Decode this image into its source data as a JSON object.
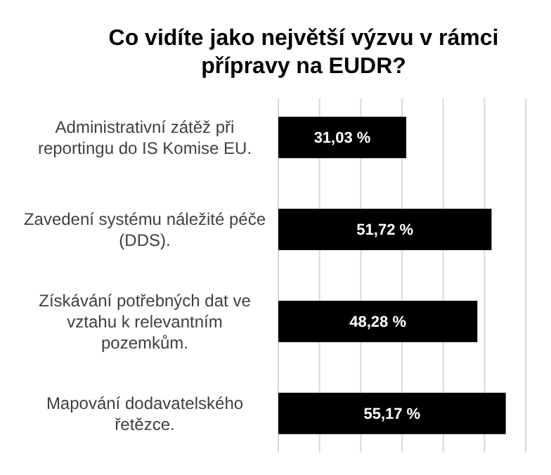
{
  "chart_data": {
    "type": "bar",
    "orientation": "horizontal",
    "title": "Co vidíte jako největší výzvu v rámci přípravy na EUDR?",
    "categories": [
      "Administrativní zátěž při reportingu do IS Komise EU.",
      "Zavedení systému náležité péče (DDS).",
      "Získávání potřebných dat ve vztahu k relevantním pozemkům.",
      "Mapování dodavatelského řetězce."
    ],
    "values": [
      31.03,
      51.72,
      48.28,
      55.17
    ],
    "value_labels": [
      "31,03 %",
      "51,72 %",
      "48,28 %",
      "55,17 %"
    ],
    "color": "#000000",
    "xlim": [
      0,
      60
    ],
    "xticks": [
      {
        "value": 0,
        "label": null
      },
      {
        "value": 10,
        "label": null
      },
      {
        "value": 20,
        "label": null
      },
      {
        "value": 30,
        "label": null
      },
      {
        "value": 40,
        "label": null
      },
      {
        "value": 50,
        "label": null
      },
      {
        "value": 60,
        "label": null
      }
    ],
    "grid": "x"
  }
}
